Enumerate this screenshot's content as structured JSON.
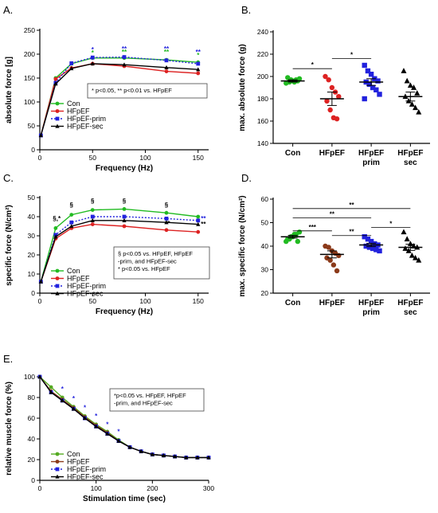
{
  "colors": {
    "Con": "#22bb22",
    "HFpEF": "#dd2222",
    "HFpEF-prim": "#2222dd",
    "HFpEF-sec": "#000000",
    "E_Con": "#55aa22",
    "E_HFpEF": "#8b3a1a"
  },
  "chart_data": [
    {
      "id": "A",
      "type": "line",
      "panel_label": "A.",
      "xlabel": "Frequency (Hz)",
      "ylabel": "absolute force [g]",
      "xlim": [
        0,
        160
      ],
      "ylim": [
        0,
        250
      ],
      "xticks": [
        0,
        50,
        100,
        150
      ],
      "yticks": [
        0,
        50,
        100,
        150,
        200,
        250
      ],
      "x": [
        1,
        15,
        30,
        50,
        80,
        120,
        150
      ],
      "series": [
        {
          "name": "Con",
          "color_key": "Con",
          "values": [
            30,
            150,
            180,
            192,
            192,
            188,
            183
          ]
        },
        {
          "name": "HFpEF",
          "color_key": "HFpEF",
          "values": [
            30,
            148,
            171,
            180,
            175,
            164,
            160
          ]
        },
        {
          "name": "HFpEF-prim",
          "color_key": "HFpEF-prim",
          "values": [
            30,
            140,
            181,
            193,
            194,
            187,
            180
          ]
        },
        {
          "name": "HFpEF-sec",
          "color_key": "HFpEF-sec",
          "values": [
            30,
            138,
            170,
            180,
            178,
            172,
            168
          ]
        }
      ],
      "annotations": [
        {
          "x": 50,
          "y": 205,
          "text": "*",
          "color_key": "HFpEF-prim"
        },
        {
          "x": 50,
          "y": 198,
          "text": "*",
          "color_key": "Con"
        },
        {
          "x": 80,
          "y": 207,
          "text": "**",
          "color_key": "HFpEF-prim"
        },
        {
          "x": 80,
          "y": 200,
          "text": "**",
          "color_key": "Con"
        },
        {
          "x": 120,
          "y": 207,
          "text": "**",
          "color_key": "HFpEF-prim"
        },
        {
          "x": 120,
          "y": 200,
          "text": "**",
          "color_key": "Con"
        },
        {
          "x": 150,
          "y": 200,
          "text": "**",
          "color_key": "HFpEF-prim"
        },
        {
          "x": 150,
          "y": 193,
          "text": "*",
          "color_key": "Con"
        }
      ],
      "note_lines": [
        "* p<0.05, ** p<0.01 vs. HFpEF"
      ],
      "legend": [
        "Con",
        "HFpEF",
        "HFpEF-prim",
        "HFpEF-sec"
      ]
    },
    {
      "id": "C",
      "type": "line",
      "panel_label": "C.",
      "xlabel": "Frequency (Hz)",
      "ylabel": "specific force (N/cm²)",
      "xlim": [
        0,
        160
      ],
      "ylim": [
        0,
        50
      ],
      "xticks": [
        0,
        50,
        100,
        150
      ],
      "yticks": [
        0,
        10,
        20,
        30,
        40,
        50
      ],
      "x": [
        1,
        15,
        30,
        50,
        80,
        120,
        150
      ],
      "series": [
        {
          "name": "Con",
          "color_key": "Con",
          "values": [
            6,
            34,
            41,
            43.5,
            44,
            42,
            40
          ]
        },
        {
          "name": "HFpEF",
          "color_key": "HFpEF",
          "values": [
            6,
            28.5,
            34,
            36,
            35,
            33,
            32
          ]
        },
        {
          "name": "HFpEF-prim",
          "color_key": "HFpEF-prim",
          "values": [
            6,
            30.5,
            37,
            40,
            40,
            39,
            38
          ]
        },
        {
          "name": "HFpEF-sec",
          "color_key": "HFpEF-sec",
          "values": [
            6,
            29.5,
            35,
            38,
            38,
            37,
            36
          ]
        }
      ],
      "annotations": [
        {
          "x": 16,
          "y": 38,
          "text": "§,*",
          "color_key": "HFpEF-sec"
        },
        {
          "x": 30,
          "y": 45,
          "text": "§",
          "color_key": "HFpEF-sec"
        },
        {
          "x": 50,
          "y": 47,
          "text": "§",
          "color_key": "HFpEF-sec"
        },
        {
          "x": 80,
          "y": 47,
          "text": "§",
          "color_key": "HFpEF-sec"
        },
        {
          "x": 120,
          "y": 45,
          "text": "§",
          "color_key": "HFpEF-sec"
        },
        {
          "x": 121,
          "y": 35.5,
          "text": "**",
          "color_key": "HFpEF-sec"
        },
        {
          "x": 155,
          "y": 38,
          "text": "**",
          "color_key": "HFpEF-prim"
        },
        {
          "x": 155,
          "y": 35,
          "text": "**",
          "color_key": "HFpEF-sec"
        }
      ],
      "note_lines": [
        "§ p<0.05 vs. HFpEF, HFpEF",
        "-prim, and HFpEF-sec",
        "* p<0.05 vs. HFpEF"
      ],
      "legend": [
        "Con",
        "HFpEF",
        "HFpEF-prim",
        "HFpEF-sec"
      ]
    },
    {
      "id": "E",
      "type": "line",
      "panel_label": "E.",
      "xlabel": "Stimulation time (sec)",
      "ylabel": "relative muscle force (%)",
      "xlim": [
        0,
        300
      ],
      "ylim": [
        0,
        100
      ],
      "xticks": [
        0,
        100,
        200,
        300
      ],
      "yticks": [
        0,
        20,
        40,
        60,
        80,
        100
      ],
      "x": [
        0,
        20,
        40,
        60,
        80,
        100,
        120,
        140,
        160,
        180,
        200,
        220,
        240,
        260,
        280,
        300
      ],
      "series": [
        {
          "name": "Con",
          "color_key": "E_Con",
          "values": [
            100,
            90,
            80,
            71,
            62,
            54,
            47,
            39,
            32,
            28,
            25,
            24,
            23,
            22,
            22,
            22
          ]
        },
        {
          "name": "HFpEF",
          "color_key": "E_HFpEF",
          "values": [
            100,
            86,
            78,
            70,
            61,
            53,
            46,
            38,
            32,
            28,
            25,
            24,
            23,
            22,
            22,
            22
          ]
        },
        {
          "name": "HFpEF-prim",
          "color_key": "HFpEF-prim",
          "values": [
            100,
            85,
            77,
            69,
            60,
            52,
            45,
            38,
            32,
            28,
            25,
            24,
            23,
            22,
            22,
            22
          ]
        },
        {
          "name": "HFpEF-sec",
          "color_key": "HFpEF-sec",
          "values": [
            100,
            85,
            77,
            69,
            60,
            52,
            45,
            38,
            32,
            28,
            25,
            24,
            23,
            22,
            22,
            22
          ]
        }
      ],
      "annotations": [
        {
          "x": 40,
          "y": 86,
          "text": "*",
          "color_key": "HFpEF-prim"
        },
        {
          "x": 60,
          "y": 77,
          "text": "*",
          "color_key": "HFpEF-prim"
        },
        {
          "x": 80,
          "y": 68,
          "text": "*",
          "color_key": "HFpEF-prim"
        },
        {
          "x": 100,
          "y": 60,
          "text": "*",
          "color_key": "HFpEF-prim"
        },
        {
          "x": 120,
          "y": 52,
          "text": "*",
          "color_key": "HFpEF-prim"
        },
        {
          "x": 140,
          "y": 45,
          "text": "*",
          "color_key": "HFpEF-prim"
        }
      ],
      "note_lines": [
        "*p<0.05 vs. HFpEF, HFpEF",
        "-prim, and HFpEF-sec"
      ],
      "legend": [
        "Con",
        "HFpEF",
        "HFpEF-prim",
        "HFpEF-sec"
      ]
    },
    {
      "id": "B",
      "type": "scatter",
      "panel_label": "B.",
      "ylabel": "max. absolute force (g)",
      "ylim": [
        140,
        240
      ],
      "yticks": [
        140,
        160,
        180,
        200,
        220,
        240
      ],
      "categories": [
        "Con",
        "HFpEF",
        "HFpEF\nprim",
        "HFpEF\nsec"
      ],
      "groups": [
        {
          "color_key": "Con",
          "marker": "circle",
          "mean": 196,
          "sem": 1,
          "values": [
            194,
            195,
            196,
            197,
            198,
            199,
            197,
            195,
            196
          ]
        },
        {
          "color_key": "HFpEF",
          "marker": "circle",
          "mean": 180,
          "sem": 6,
          "values": [
            200,
            197,
            190,
            186,
            182,
            178,
            170,
            163,
            162
          ]
        },
        {
          "color_key": "HFpEF-prim",
          "marker": "square",
          "mean": 195,
          "sem": 3,
          "values": [
            210,
            205,
            202,
            198,
            196,
            195,
            193,
            190,
            188,
            184,
            180
          ]
        },
        {
          "color_key": "HFpEF-sec",
          "marker": "triangle",
          "mean": 182,
          "sem": 4,
          "values": [
            205,
            196,
            192,
            190,
            185,
            182,
            178,
            175,
            172,
            168
          ]
        }
      ],
      "brackets": [
        {
          "from": 0,
          "to": 1,
          "y": 207,
          "text": "*"
        },
        {
          "from": 1,
          "to": 2,
          "y": 216,
          "text": "*"
        }
      ]
    },
    {
      "id": "D",
      "type": "scatter",
      "panel_label": "D.",
      "ylabel": "max. specific force (N/cm²)",
      "ylim": [
        20,
        60
      ],
      "yticks": [
        20,
        30,
        40,
        50,
        60
      ],
      "categories": [
        "Con",
        "HFpEF",
        "HFpEF\nprim",
        "HFpEF\nsec"
      ],
      "groups": [
        {
          "color_key": "Con",
          "marker": "circle",
          "mean": 44,
          "sem": 0.6,
          "values": [
            42,
            43,
            44,
            45,
            46,
            43,
            44,
            45,
            42
          ]
        },
        {
          "color_key": "E_HFpEF",
          "marker": "circle",
          "mean": 36.5,
          "sem": 1.5,
          "values": [
            40,
            39.5,
            38,
            37,
            36,
            35,
            34,
            32,
            29.5
          ]
        },
        {
          "color_key": "HFpEF-prim",
          "marker": "square",
          "mean": 40.5,
          "sem": 0.7,
          "values": [
            44,
            43,
            42,
            41,
            40.5,
            40,
            39.5,
            39,
            38.5,
            38
          ]
        },
        {
          "color_key": "HFpEF-sec",
          "marker": "triangle",
          "mean": 39.5,
          "sem": 1.3,
          "values": [
            46,
            43,
            41,
            40,
            39.5,
            39,
            38,
            36,
            35,
            34
          ]
        }
      ],
      "brackets": [
        {
          "from": 0,
          "to": 3,
          "y": 56,
          "text": "**"
        },
        {
          "from": 0,
          "to": 2,
          "y": 52,
          "text": "**"
        },
        {
          "from": 2,
          "to": 3,
          "y": 48,
          "text": "*"
        },
        {
          "from": 0,
          "to": 1,
          "y": 46.5,
          "text": "***"
        },
        {
          "from": 1,
          "to": 2,
          "y": 44.5,
          "text": "**"
        }
      ]
    }
  ]
}
